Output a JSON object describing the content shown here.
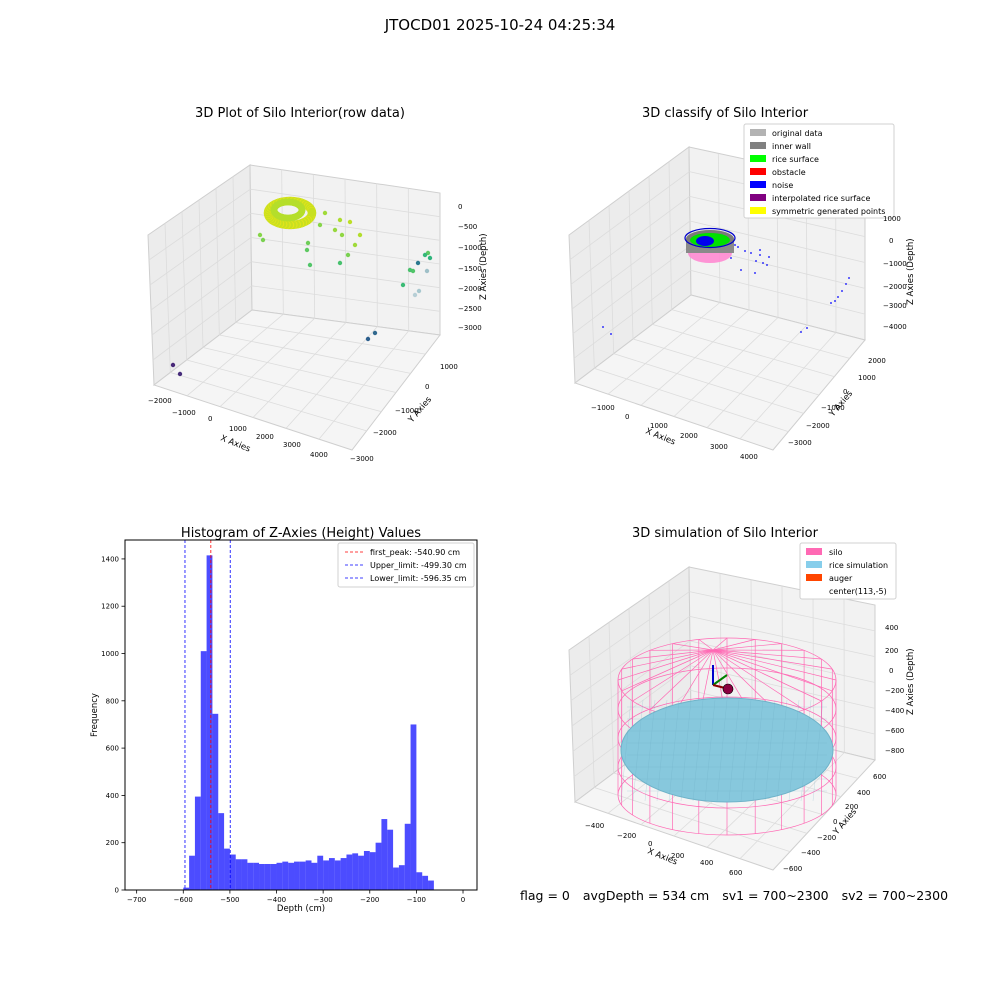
{
  "suptitle": "JTOCD01 2025-10-24 04:25:34",
  "status": {
    "flag": "flag = 0",
    "avg_depth": "avgDepth = 534 cm",
    "sv1": "sv1 = 700~2300",
    "sv2": "sv2 = 700~2300"
  },
  "chart_data": [
    {
      "type": "scatter",
      "title": "3D Plot of Silo Interior(row data)",
      "xlabel": "X Axies",
      "ylabel": "Y Axies",
      "zlabel": "Z Axies (Depth)",
      "xticks": [
        "−2000",
        "−1000",
        "0",
        "1000",
        "2000",
        "3000",
        "4000"
      ],
      "yticks": [
        "1000",
        "0",
        "−1000",
        "−2000",
        "−3000"
      ],
      "zticks": [
        "0",
        "−500",
        "−1000",
        "−1500",
        "−2000",
        "−2500",
        "−3000"
      ],
      "xlim": [
        -2000,
        4300
      ],
      "ylim": [
        -3000,
        1500
      ],
      "zlim": [
        -3300,
        0
      ],
      "colormap": "viridis",
      "point_clusters": [
        {
          "x": 0,
          "y": 500,
          "z": -540
        },
        {
          "x": 3800,
          "y": -200,
          "z": -1600
        },
        {
          "x": 3500,
          "y": -1500,
          "z": -2600
        },
        {
          "x": -1400,
          "y": -2500,
          "z": -3200
        }
      ]
    },
    {
      "type": "scatter",
      "title": "3D classify of Silo Interior",
      "xlabel": "X Axies",
      "ylabel": "Y Axies",
      "zlabel": "Z Axies (Depth)",
      "xticks": [
        "−1000",
        "0",
        "1000",
        "2000",
        "3000",
        "4000"
      ],
      "yticks": [
        "2000",
        "1000",
        "0",
        "−1000",
        "−2000",
        "−3000"
      ],
      "zticks": [
        "1000",
        "0",
        "−1000",
        "−2000",
        "−3000",
        "−4000"
      ],
      "legend": [
        {
          "name": "original data",
          "color": "#b3b3b3"
        },
        {
          "name": "inner wall",
          "color": "#808080"
        },
        {
          "name": "rice surface",
          "color": "#00ff00"
        },
        {
          "name": "obstacle",
          "color": "#ff0000"
        },
        {
          "name": "noise",
          "color": "#0000ff"
        },
        {
          "name": "interpolated rice surface",
          "color": "#800080"
        },
        {
          "name": "symmetric generated points",
          "color": "#ffff00"
        }
      ],
      "legend_loc": "upper right"
    },
    {
      "type": "bar",
      "title": "Histogram of Z-Axies (Height) Values",
      "xlabel": "Depth (cm)",
      "ylabel": "Frequency",
      "xlim": [
        -725,
        30
      ],
      "ylim": [
        0,
        1480
      ],
      "xticks": [
        -700,
        -600,
        -500,
        -400,
        -300,
        -200,
        -100,
        0
      ],
      "xtick_labels": [
        "−700",
        "−600",
        "−500",
        "−400",
        "−300",
        "−200",
        "−100",
        "0"
      ],
      "yticks": [
        0,
        200,
        400,
        600,
        800,
        1000,
        1200,
        1400
      ],
      "bin_start": -600,
      "bin_width": 12.5,
      "values": [
        10,
        145,
        395,
        1010,
        1415,
        745,
        325,
        175,
        150,
        130,
        130,
        115,
        115,
        110,
        110,
        110,
        115,
        120,
        115,
        120,
        120,
        125,
        115,
        145,
        125,
        135,
        125,
        135,
        150,
        155,
        145,
        165,
        160,
        200,
        300,
        255,
        95,
        105,
        280,
        700,
        75,
        60,
        40
      ],
      "bar_color": "#0000ff",
      "vlines": [
        {
          "name": "first_peak: -540.90 cm",
          "x": -540.9,
          "color": "#ff0000"
        },
        {
          "name": "Upper_limit: -499.30 cm",
          "x": -499.3,
          "color": "#0000ff"
        },
        {
          "name": "Lower_limit: -596.35 cm",
          "x": -596.35,
          "color": "#0000ff"
        }
      ],
      "legend_loc": "upper right"
    },
    {
      "type": "scatter",
      "title": "3D simulation of Silo Interior",
      "xlabel": "X Axies",
      "ylabel": "Y Axies",
      "zlabel": "Z Axies (Depth)",
      "xticks": [
        "−400",
        "−200",
        "0",
        "200",
        "400",
        "600"
      ],
      "yticks": [
        "600",
        "400",
        "200",
        "0",
        "−200",
        "−400",
        "−600"
      ],
      "zticks": [
        "400",
        "200",
        "0",
        "−200",
        "−400",
        "−600",
        "−800"
      ],
      "legend": [
        {
          "name": "silo",
          "color": "#ff69b4"
        },
        {
          "name": "rice simulation",
          "color": "#87ceeb"
        },
        {
          "name": "auger",
          "color": "#ff4500"
        },
        {
          "name": "center(113,-5)",
          "color": "#ffffff"
        }
      ],
      "legend_loc": "upper right"
    }
  ]
}
